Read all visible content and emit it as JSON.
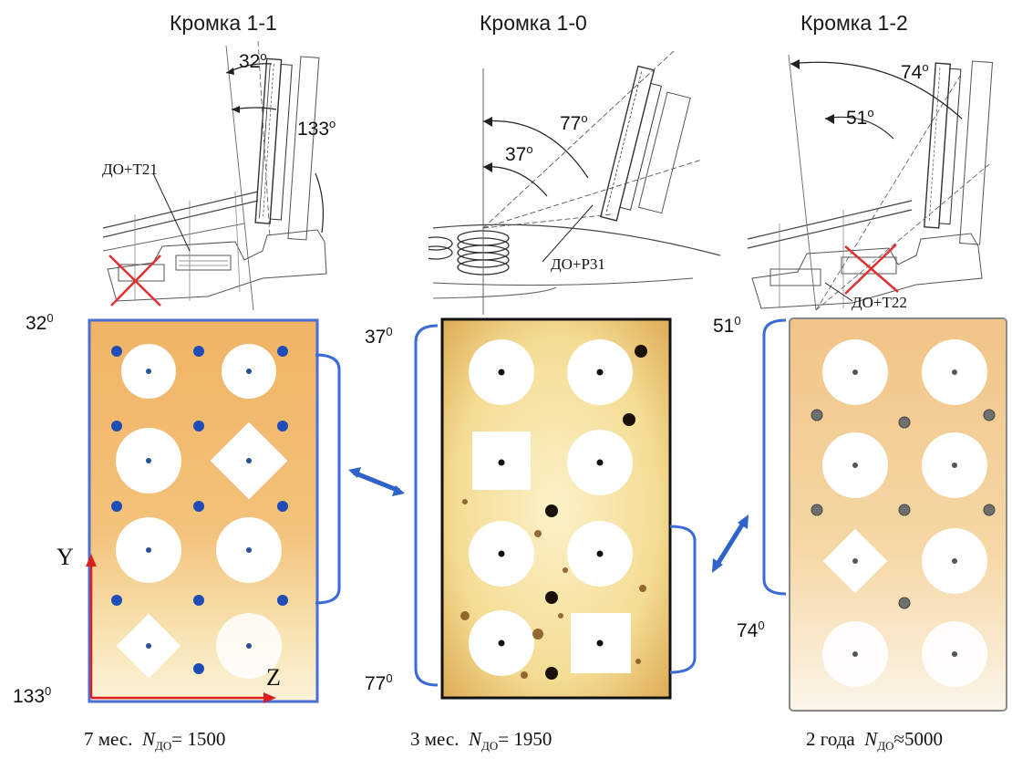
{
  "columns": [
    {
      "title": "Кромка 1-1",
      "label_do": "ДО+Т21",
      "arc_a_base": "32",
      "arc_a_exp": "o",
      "arc_b_base": "133",
      "arc_b_exp": "o",
      "edge_top_base": "32",
      "edge_top_exp": "0",
      "edge_bottom_base": "133",
      "edge_bottom_exp": "0",
      "caption_period": "7 мес.",
      "caption_n": "N",
      "caption_sub": "ДО",
      "caption_rel": "= 1500"
    },
    {
      "title": "Кромка 1-0",
      "label_do": "ДО+Р31",
      "arc_a_base": "77",
      "arc_a_exp": "o",
      "arc_b_base": "37",
      "arc_b_exp": "o",
      "edge_top_base": "37",
      "edge_top_exp": "0",
      "edge_bottom_base": "77",
      "edge_bottom_exp": "0",
      "caption_period": "3 мес.",
      "caption_n": "N",
      "caption_sub": "ДО",
      "caption_rel": "= 1950"
    },
    {
      "title": "Кромка 1-2",
      "label_do": "ДО+Т22",
      "arc_a_base": "74",
      "arc_a_exp": "o",
      "arc_b_base": "51",
      "arc_b_exp": "o",
      "edge_top_base": "51",
      "edge_top_exp": "0",
      "edge_bottom_base": "74",
      "edge_bottom_exp": "0",
      "caption_period": "2 года",
      "caption_n": "N",
      "caption_sub": "ДО",
      "caption_rel": "≈5000"
    }
  ],
  "axes": {
    "y": "Y",
    "z": "Z"
  },
  "colors": {
    "bracket": "#3b6bd6",
    "arrow": "#2f63c9",
    "cross": "#e03131",
    "axis": "#d92020"
  }
}
